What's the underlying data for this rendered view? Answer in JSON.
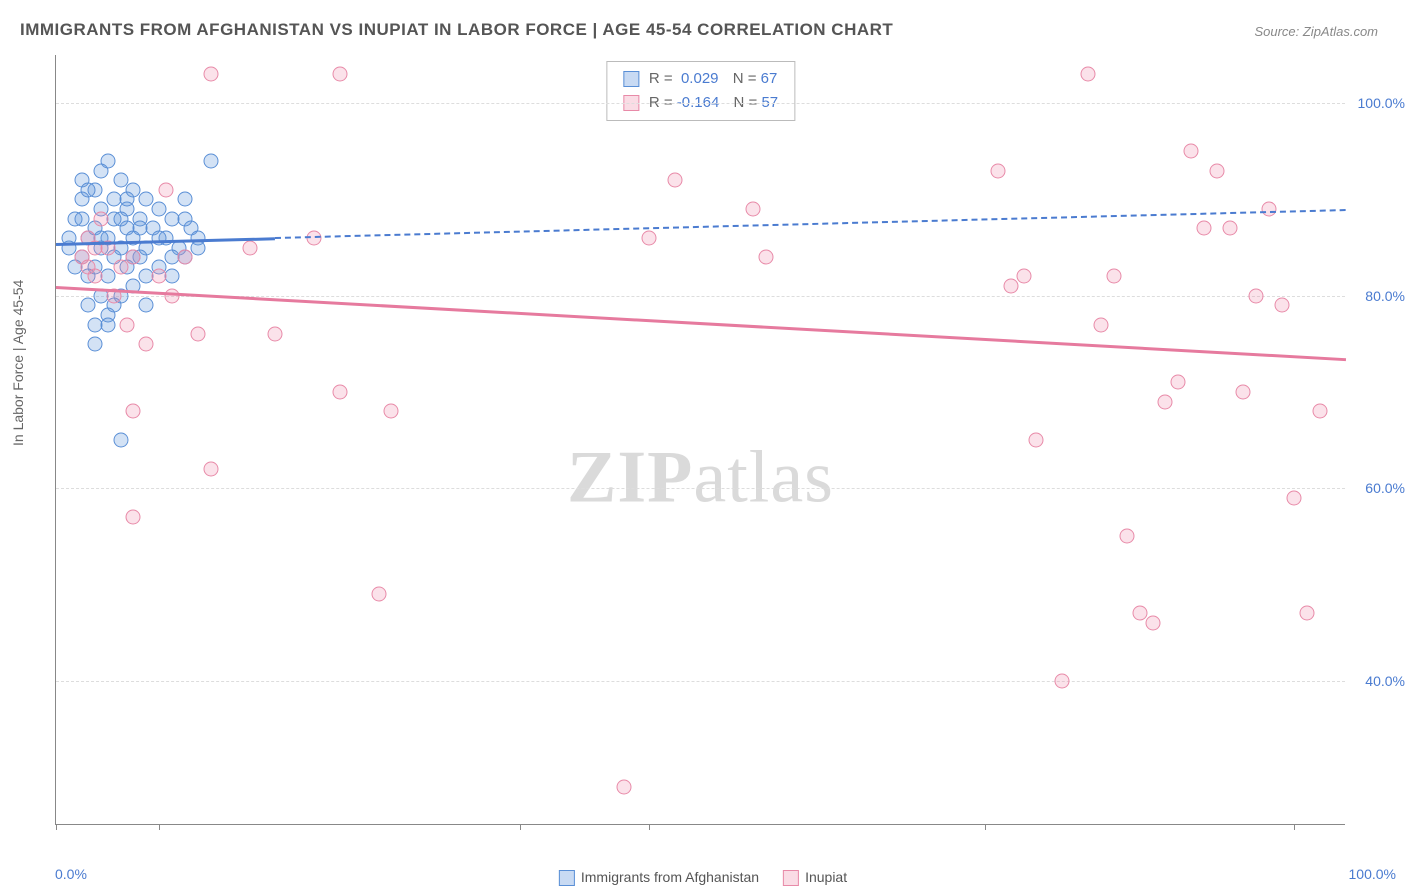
{
  "title": "IMMIGRANTS FROM AFGHANISTAN VS INUPIAT IN LABOR FORCE | AGE 45-54 CORRELATION CHART",
  "source": "Source: ZipAtlas.com",
  "watermark_a": "ZIP",
  "watermark_b": "atlas",
  "y_axis_label": "In Labor Force | Age 45-54",
  "chart": {
    "type": "scatter",
    "background_color": "#ffffff",
    "axis_color": "#888888",
    "grid_color": "#dddddd",
    "grid_dash": true,
    "xlim": [
      0,
      100
    ],
    "ylim": [
      25,
      105
    ],
    "x_ticks": [
      0,
      8,
      36,
      46,
      72,
      96
    ],
    "y_ticks": [
      40,
      60,
      80,
      100
    ],
    "y_tick_labels": [
      "40.0%",
      "60.0%",
      "80.0%",
      "100.0%"
    ],
    "x_left_label": "0.0%",
    "x_right_label": "100.0%",
    "tick_label_color": "#4a7bd0",
    "tick_label_fontsize": 14,
    "point_radius": 7.5,
    "series": [
      {
        "name": "Immigrants from Afghanistan",
        "key": "blue",
        "fill_color": "rgba(96,150,220,0.28)",
        "stroke_color": "#5a8fd6",
        "r_value": "0.029",
        "n_value": "67",
        "trend": {
          "x1": 0,
          "y1": 85.5,
          "x2": 100,
          "y2": 89,
          "solid_until_x": 17
        },
        "points": [
          [
            1,
            85
          ],
          [
            1,
            86
          ],
          [
            1.5,
            83
          ],
          [
            1.5,
            88
          ],
          [
            2,
            90
          ],
          [
            2,
            92
          ],
          [
            2,
            84
          ],
          [
            2.5,
            79
          ],
          [
            2.5,
            86
          ],
          [
            2.5,
            82
          ],
          [
            3,
            91
          ],
          [
            3,
            87
          ],
          [
            3,
            77
          ],
          [
            3.5,
            93
          ],
          [
            3.5,
            85
          ],
          [
            3.5,
            89
          ],
          [
            3.5,
            80
          ],
          [
            4,
            94
          ],
          [
            4,
            86
          ],
          [
            4,
            82
          ],
          [
            4,
            78
          ],
          [
            4.5,
            90
          ],
          [
            4.5,
            84
          ],
          [
            4.5,
            88
          ],
          [
            5,
            92
          ],
          [
            5,
            85
          ],
          [
            5,
            80
          ],
          [
            5,
            65
          ],
          [
            5.5,
            87
          ],
          [
            5.5,
            83
          ],
          [
            5.5,
            89
          ],
          [
            6,
            91
          ],
          [
            6,
            86
          ],
          [
            6,
            81
          ],
          [
            6.5,
            84
          ],
          [
            6.5,
            88
          ],
          [
            7,
            90
          ],
          [
            7,
            85
          ],
          [
            7,
            79
          ],
          [
            7.5,
            87
          ],
          [
            8,
            89
          ],
          [
            8,
            83
          ],
          [
            8.5,
            86
          ],
          [
            9,
            88
          ],
          [
            9,
            82
          ],
          [
            9.5,
            85
          ],
          [
            10,
            90
          ],
          [
            10,
            84
          ],
          [
            10.5,
            87
          ],
          [
            11,
            86
          ],
          [
            12,
            94
          ],
          [
            3,
            75
          ],
          [
            4,
            77
          ],
          [
            2,
            88
          ],
          [
            2.5,
            91
          ],
          [
            3,
            83
          ],
          [
            3.5,
            86
          ],
          [
            4.5,
            79
          ],
          [
            5,
            88
          ],
          [
            5.5,
            90
          ],
          [
            6,
            84
          ],
          [
            6.5,
            87
          ],
          [
            7,
            82
          ],
          [
            8,
            86
          ],
          [
            9,
            84
          ],
          [
            10,
            88
          ],
          [
            11,
            85
          ]
        ]
      },
      {
        "name": "Inupiat",
        "key": "pink",
        "fill_color": "rgba(238,140,170,0.25)",
        "stroke_color": "#e88aa8",
        "r_value": "-0.164",
        "n_value": "57",
        "trend": {
          "x1": 0,
          "y1": 81,
          "x2": 100,
          "y2": 73.5,
          "solid_until_x": 100
        },
        "points": [
          [
            2,
            84
          ],
          [
            2.5,
            86
          ],
          [
            3,
            82
          ],
          [
            3.5,
            88
          ],
          [
            4,
            85
          ],
          [
            4.5,
            80
          ],
          [
            5,
            83
          ],
          [
            5.5,
            77
          ],
          [
            6,
            68
          ],
          [
            6,
            57
          ],
          [
            7,
            75
          ],
          [
            8,
            82
          ],
          [
            8.5,
            91
          ],
          [
            9,
            80
          ],
          [
            10,
            84
          ],
          [
            11,
            76
          ],
          [
            12,
            103
          ],
          [
            12,
            62
          ],
          [
            15,
            85
          ],
          [
            17,
            76
          ],
          [
            20,
            86
          ],
          [
            22,
            103
          ],
          [
            22,
            70
          ],
          [
            25,
            49
          ],
          [
            26,
            68
          ],
          [
            44,
            29
          ],
          [
            46,
            86
          ],
          [
            48,
            92
          ],
          [
            54,
            89
          ],
          [
            55,
            84
          ],
          [
            73,
            93
          ],
          [
            74,
            81
          ],
          [
            75,
            82
          ],
          [
            76,
            65
          ],
          [
            78,
            40
          ],
          [
            80,
            103
          ],
          [
            81,
            77
          ],
          [
            82,
            82
          ],
          [
            83,
            55
          ],
          [
            84,
            47
          ],
          [
            85,
            46
          ],
          [
            86,
            69
          ],
          [
            87,
            71
          ],
          [
            88,
            95
          ],
          [
            89,
            87
          ],
          [
            90,
            93
          ],
          [
            91,
            87
          ],
          [
            92,
            70
          ],
          [
            93,
            80
          ],
          [
            94,
            89
          ],
          [
            95,
            79
          ],
          [
            96,
            59
          ],
          [
            97,
            47
          ],
          [
            98,
            68
          ],
          [
            2.5,
            83
          ],
          [
            3,
            85
          ],
          [
            6,
            84
          ]
        ]
      }
    ],
    "legend_bottom": [
      {
        "swatch": "blue",
        "label": "Immigrants from Afghanistan"
      },
      {
        "swatch": "pink",
        "label": "Inupiat"
      }
    ],
    "legend_stats_labels": {
      "r_prefix": "R =",
      "n_prefix": "N ="
    }
  }
}
